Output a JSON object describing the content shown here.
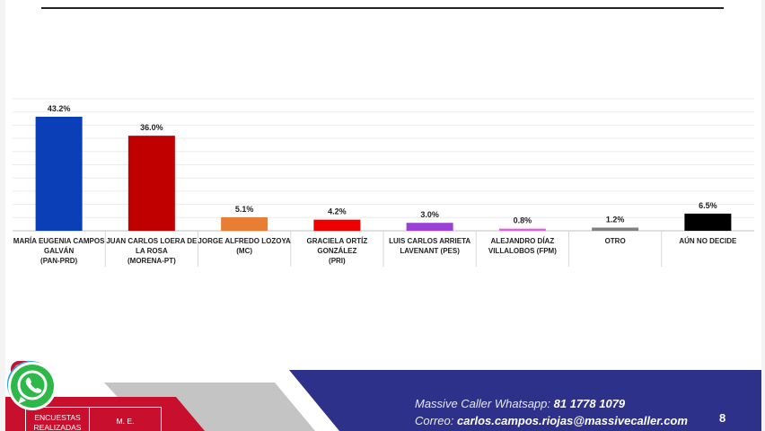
{
  "chart_data": {
    "type": "bar",
    "categories": [
      "MARÍA EUGENIA CAMPOS GALVÁN (PAN-PRD)",
      "JUAN CARLOS LOERA DE LA ROSA (MORENA-PT)",
      "JORGE ALFREDO LOZOYA (MC)",
      "GRACIELA ORTÍZ GONZÁLEZ (PRI)",
      "LUIS CARLOS ARRIETA LAVENANT (PES)",
      "ALEJANDRO DÍAZ VILLALOBOS (FPM)",
      "OTRO",
      "AÚN NO DECIDE"
    ],
    "category_lines": [
      [
        "MARÍA EUGENIA CAMPOS",
        "GALVÁN",
        "(PAN-PRD)"
      ],
      [
        "JUAN CARLOS LOERA DE",
        "LA ROSA",
        "(MORENA-PT)"
      ],
      [
        "JORGE ALFREDO LOZOYA",
        "(MC)"
      ],
      [
        "GRACIELA ORTÍZ",
        "GONZÁLEZ",
        "(PRI)"
      ],
      [
        "LUIS CARLOS ARRIETA",
        "LAVENANT (PES)"
      ],
      [
        "ALEJANDRO DÍAZ",
        "VILLALOBOS (FPM)"
      ],
      [
        "OTRO"
      ],
      [
        "AÚN NO DECIDE"
      ]
    ],
    "values": [
      43.2,
      36.0,
      5.1,
      4.2,
      3.0,
      0.8,
      1.2,
      6.5
    ],
    "value_labels": [
      "43.2%",
      "36.0%",
      "5.1%",
      "4.2%",
      "3.0%",
      "0.8%",
      "1.2%",
      "6.5%"
    ],
    "colors": [
      "#0b3fb8",
      "#c00000",
      "#e87d33",
      "#ee0000",
      "#9b3fd6",
      "#e060e0",
      "#808080",
      "#000000"
    ],
    "ylim": [
      0,
      50
    ],
    "grid": true,
    "title": "",
    "xlabel": "",
    "ylabel": ""
  },
  "footer": {
    "enc_left": "ENCUESTAS REALIZADAS",
    "enc_right": "M. E.",
    "contact_line1_prefix": "Massive Caller  Whatsapp:",
    "contact_line1_value": "81 1778 1079",
    "contact_line2_prefix": "Correo:",
    "contact_line2_value": "carlos.campos.riojas@massivecaller.com",
    "page_number": "8",
    "colors": {
      "navy": "#2e3189",
      "red": "#c8102e",
      "gray": "#b8b8b8"
    }
  },
  "icons": [
    "telegram-icon",
    "whatsapp-icon",
    "massive-caller-logo-icon"
  ]
}
